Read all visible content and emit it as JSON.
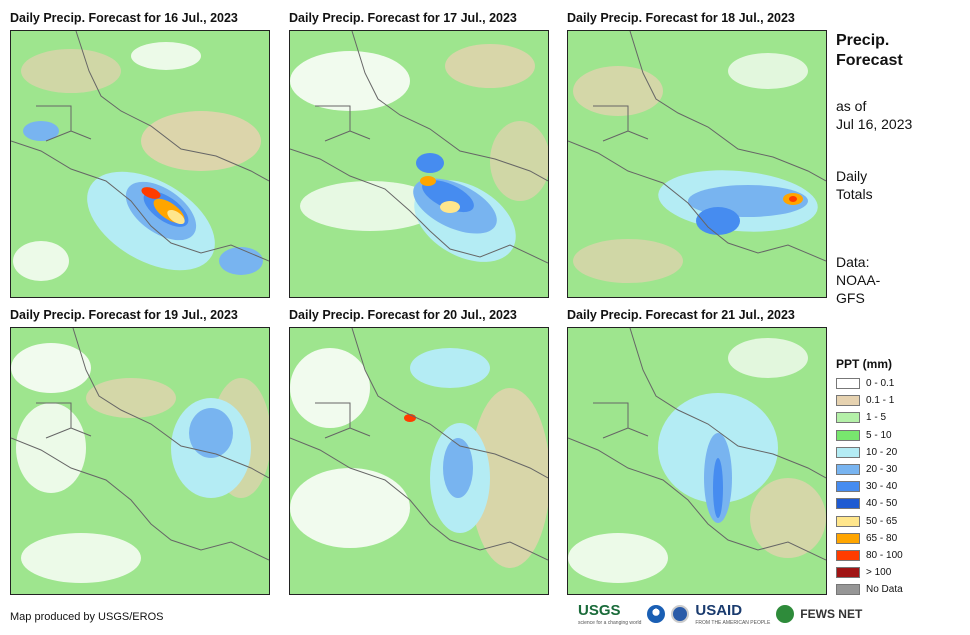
{
  "panels": [
    {
      "title": "Daily Precip. Forecast for 16 Jul., 2023"
    },
    {
      "title": "Daily Precip. Forecast for 17 Jul., 2023"
    },
    {
      "title": "Daily Precip. Forecast for 18 Jul., 2023"
    },
    {
      "title": "Daily Precip. Forecast for 19 Jul., 2023"
    },
    {
      "title": "Daily Precip. Forecast for 20 Jul., 2023"
    },
    {
      "title": "Daily Precip. Forecast for 21 Jul., 2023"
    }
  ],
  "sidebar": {
    "title_line1": "Precip.",
    "title_line2": "Forecast",
    "asof_line1": "as of",
    "asof_line2": "Jul 16, 2023",
    "totals_line1": "Daily",
    "totals_line2": "Totals",
    "data_line1": "Data:",
    "data_line2": "NOAA-",
    "data_line3": "GFS"
  },
  "legend": {
    "title": "PPT (mm)",
    "items": [
      {
        "label": "0 - 0.1",
        "color": "#ffffff"
      },
      {
        "label": "0.1 - 1",
        "color": "#e6d2b0"
      },
      {
        "label": "1 - 5",
        "color": "#b4f0a8"
      },
      {
        "label": "5 - 10",
        "color": "#78e66e"
      },
      {
        "label": "10 - 20",
        "color": "#b4ecf4"
      },
      {
        "label": "20 - 30",
        "color": "#78b4f0"
      },
      {
        "label": "30 - 40",
        "color": "#468cf0"
      },
      {
        "label": "40 - 50",
        "color": "#1e5ad2"
      },
      {
        "label": "50 - 65",
        "color": "#ffe68c"
      },
      {
        "label": "65 - 80",
        "color": "#ffa500"
      },
      {
        "label": "80 - 100",
        "color": "#ff3c00"
      },
      {
        "label": "> 100",
        "color": "#a01414"
      },
      {
        "label": "No Data",
        "color": "#969696"
      }
    ]
  },
  "footer": {
    "credit": "Map produced by USGS/EROS",
    "usgs": "USGS",
    "usgs_tagline": "science for a changing world",
    "usaid": "USAID",
    "usaid_tagline": "FROM THE AMERICAN PEOPLE",
    "fewsnet": "FEWS NET"
  }
}
